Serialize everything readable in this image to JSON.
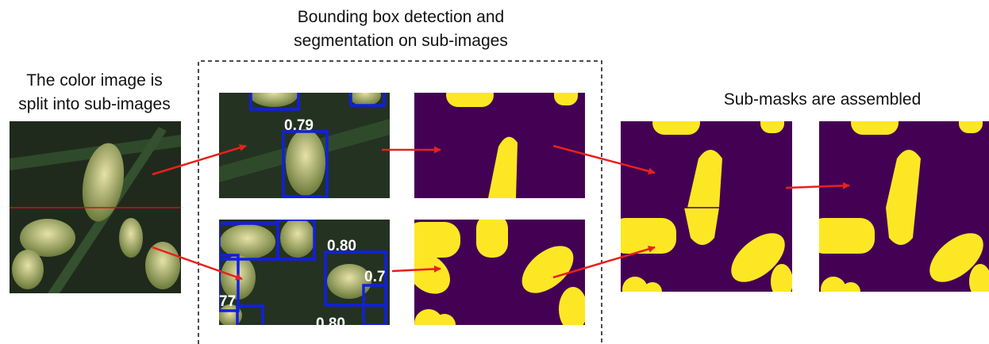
{
  "header": {
    "left_title": [
      "The color image is",
      "split into sub-images"
    ],
    "center_title": [
      "Bounding box detection and",
      "segmentation on sub-images"
    ],
    "right_title": "Sub-masks are assembled"
  },
  "detections": {
    "top": [
      "0.79"
    ],
    "bottom": [
      "0.80",
      "0.7",
      "77",
      "0.80"
    ]
  }
}
